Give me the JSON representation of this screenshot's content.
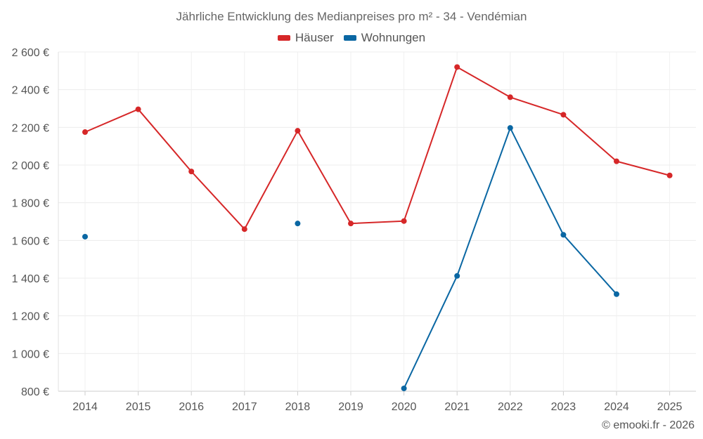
{
  "chart_data": {
    "type": "line",
    "title": "Jährliche Entwicklung des Medianpreises pro m² - 34 - Vendémian",
    "categories": [
      "2014",
      "2015",
      "2016",
      "2017",
      "2018",
      "2019",
      "2020",
      "2021",
      "2022",
      "2023",
      "2024",
      "2025"
    ],
    "series": [
      {
        "name": "Häuser",
        "color": "#d62728",
        "values": [
          2175,
          2296,
          1966,
          1660,
          2182,
          1690,
          1703,
          2520,
          2360,
          2267,
          2020,
          1945
        ]
      },
      {
        "name": "Wohnungen",
        "color": "#0a67a3",
        "values": [
          1620,
          null,
          null,
          null,
          1690,
          null,
          815,
          1412,
          2197,
          1630,
          1315,
          null
        ]
      }
    ],
    "ylim": [
      800,
      2600
    ],
    "yticks": [
      800,
      1000,
      1200,
      1400,
      1600,
      1800,
      2000,
      2200,
      2400,
      2600
    ],
    "ytick_labels": [
      "800 €",
      "1 000 €",
      "1 200 €",
      "1 400 €",
      "1 600 €",
      "1 800 €",
      "2 000 €",
      "2 200 €",
      "2 400 €",
      "2 600 €"
    ],
    "xlabel": "",
    "ylabel": "",
    "grid": true,
    "legend_position": "top-center"
  },
  "credit": "© emooki.fr - 2026"
}
